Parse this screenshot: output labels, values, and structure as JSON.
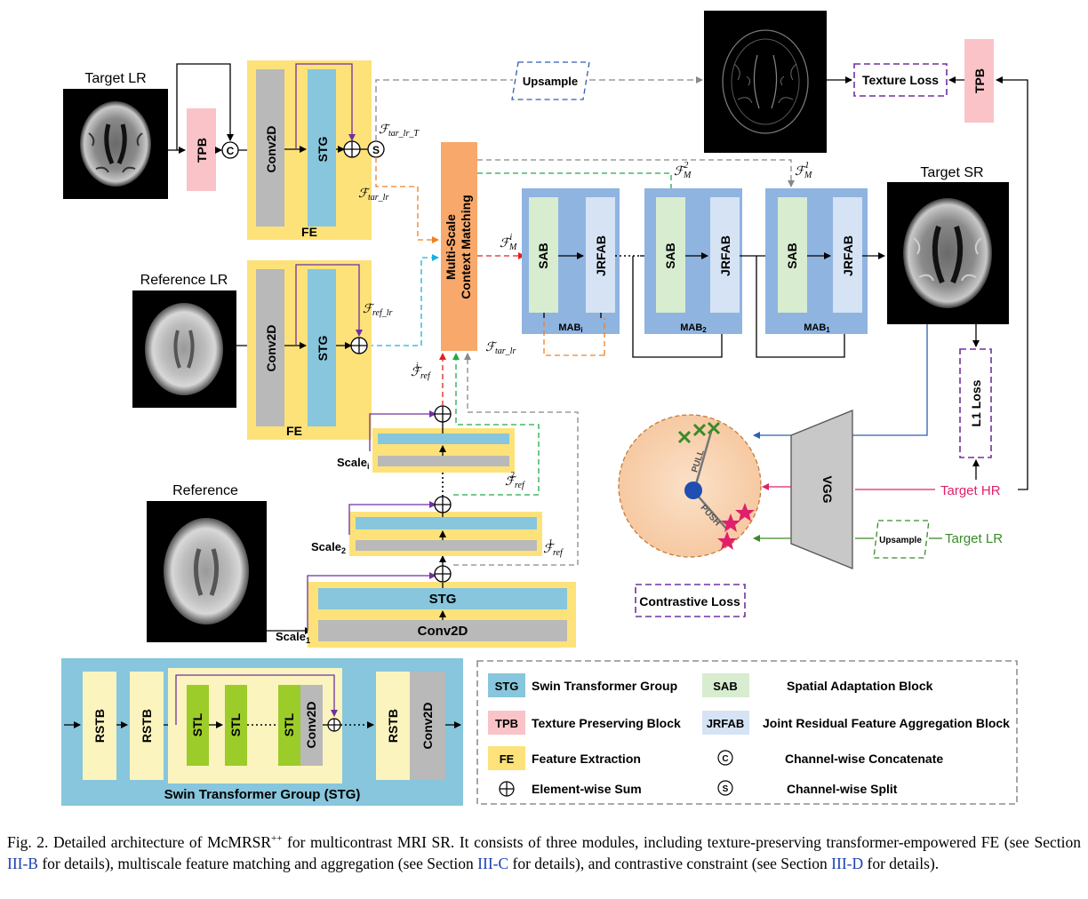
{
  "images": {
    "target_lr": "Target LR",
    "reference_lr": "Reference LR",
    "reference": "Reference",
    "target_sr": "Target SR"
  },
  "blocks": {
    "tpb": "TPB",
    "conv2d": "Conv2D",
    "stg": "STG",
    "fe": "FE",
    "upsample": "Upsample",
    "texture_loss": "Texture Loss",
    "msm": [
      "Multi-Scale",
      "Context Matching"
    ],
    "sab": "SAB",
    "jrfab": "JRFAB",
    "mab_i": "MAB",
    "mab_i_sub": "i",
    "mab_2": "MAB",
    "mab_2_sub": "2",
    "mab_1": "MAB",
    "mab_1_sub": "1",
    "l1_loss": "L1 Loss",
    "vgg": "VGG",
    "target_hr": "Target HR",
    "target_lr_in": "Target LR",
    "contrastive_loss": "Contrastive Loss",
    "pull": "PULL",
    "push": "PUSH",
    "scale": "Scale",
    "scale_i_sub": "i",
    "scale_2_sub": "2",
    "scale_1_sub": "1",
    "concat_symbol": "C",
    "split_symbol": "S"
  },
  "math": {
    "f": "ℱ",
    "tar_lr_t": "tar_lr_T",
    "tar_lr": "tar_lr",
    "ref_lr": "ref_lr",
    "m": "M",
    "i": "i",
    "ref": "ref",
    "two": "2",
    "one": "1"
  },
  "stg_detail": {
    "title": "Swin Transformer Group (STG)",
    "rstb": "RSTB",
    "stl": "STL",
    "conv2d": "Conv2D"
  },
  "legend": [
    {
      "abbr": "STG",
      "text": "Swin Transformer Group",
      "color": "#87c6dc"
    },
    {
      "abbr": "TPB",
      "text": "Texture Preserving Block",
      "color": "#f9c3c8"
    },
    {
      "abbr": "FE",
      "text": "Feature Extraction",
      "color": "#fde27a"
    },
    {
      "abbr": "SAB",
      "text": "Spatial Adaptation Block",
      "color": "#d8ecd0"
    },
    {
      "abbr": "JRFAB",
      "text": "Joint Residual Feature Aggregation Block",
      "color": "#d6e3f4"
    },
    {
      "abbr": "C",
      "text": "Channel-wise Concatenate"
    },
    {
      "abbr": "+",
      "text": "Element-wise Sum"
    },
    {
      "abbr": "S",
      "text": "Channel-wise Split"
    }
  ],
  "caption": {
    "prefix": "Fig. 2.   Detailed architecture of McMRSR",
    "sup": "++",
    "part1": " for multicontrast MRI SR. It consists of three modules, including texture-preserving transformer-empowered FE (see Section ",
    "ref1": "III-B",
    "part2": " for details), multiscale feature matching and aggregation (see Section ",
    "ref2": "III-C",
    "part3": " for details), and contrastive constraint (see Section ",
    "ref3": "III-D",
    "part4": " for details)."
  }
}
